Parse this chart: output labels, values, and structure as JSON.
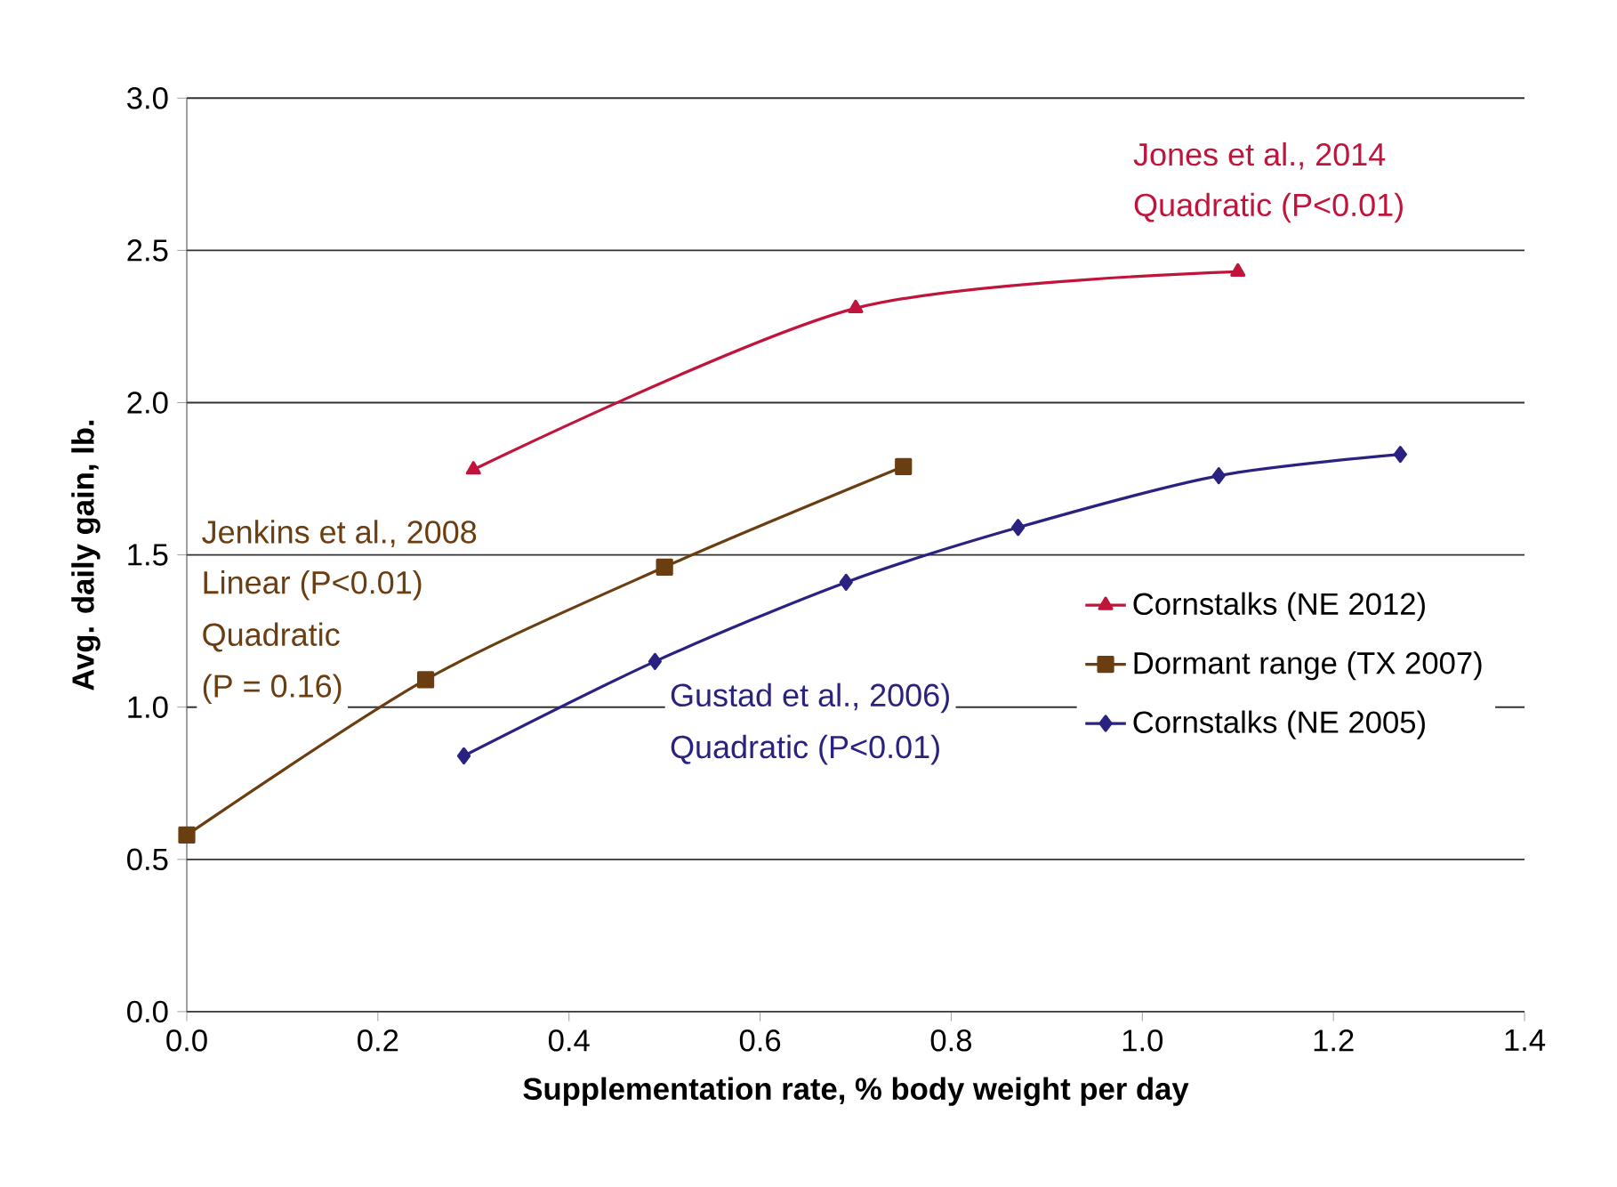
{
  "chart_data": {
    "type": "line",
    "xlabel": "Supplementation rate, % body weight per day",
    "ylabel": "Avg. daily gain, lb.",
    "xlim": [
      0,
      1.4
    ],
    "xticks": [
      {
        "value": 0,
        "label": "0.0"
      },
      0.2,
      0.4,
      0.6,
      0.8,
      {
        "value": 1,
        "label": "1.0"
      },
      1.2,
      1.4
    ],
    "ylim": [
      0,
      3
    ],
    "yticks": [
      {
        "value": 0,
        "label": "0.0"
      },
      0.5,
      {
        "value": 1,
        "label": "1.0"
      },
      1.5,
      {
        "value": 2,
        "label": "2.0"
      },
      2.5,
      {
        "value": 3,
        "label": "3.0"
      }
    ],
    "grid": "y",
    "legend": "right",
    "line_style": "solid",
    "series": [
      {
        "name": "Cornstalks (NE 2012)",
        "color": "#c0143c",
        "marker": "triangle",
        "x": [
          0.3,
          0.7,
          1.1
        ],
        "values": [
          1.78,
          2.31,
          2.43
        ]
      },
      {
        "name": "Dormant range (TX 2007)",
        "color": "#6b3e12",
        "marker": "square",
        "x": [
          0,
          0.25,
          0.5,
          0.75
        ],
        "values": [
          0.58,
          1.09,
          1.46,
          1.79
        ]
      },
      {
        "name": "Cornstalks (NE 2005)",
        "color": "#2a2281",
        "marker": "diamond",
        "x": [
          0.29,
          0.49,
          0.69,
          0.87,
          1.08,
          1.27
        ],
        "values": [
          0.84,
          1.15,
          1.41,
          1.59,
          1.76,
          1.83
        ]
      }
    ],
    "annotations": [
      "Jones et al., 2014",
      "Quadratic (P<0.01)",
      "Jenkins et al., 2008",
      "Linear (P<0.01)",
      "Quadratic",
      "(P = 0.16)",
      "Gustad et al., 2006)",
      "Quadratic (P<0.01)"
    ]
  }
}
